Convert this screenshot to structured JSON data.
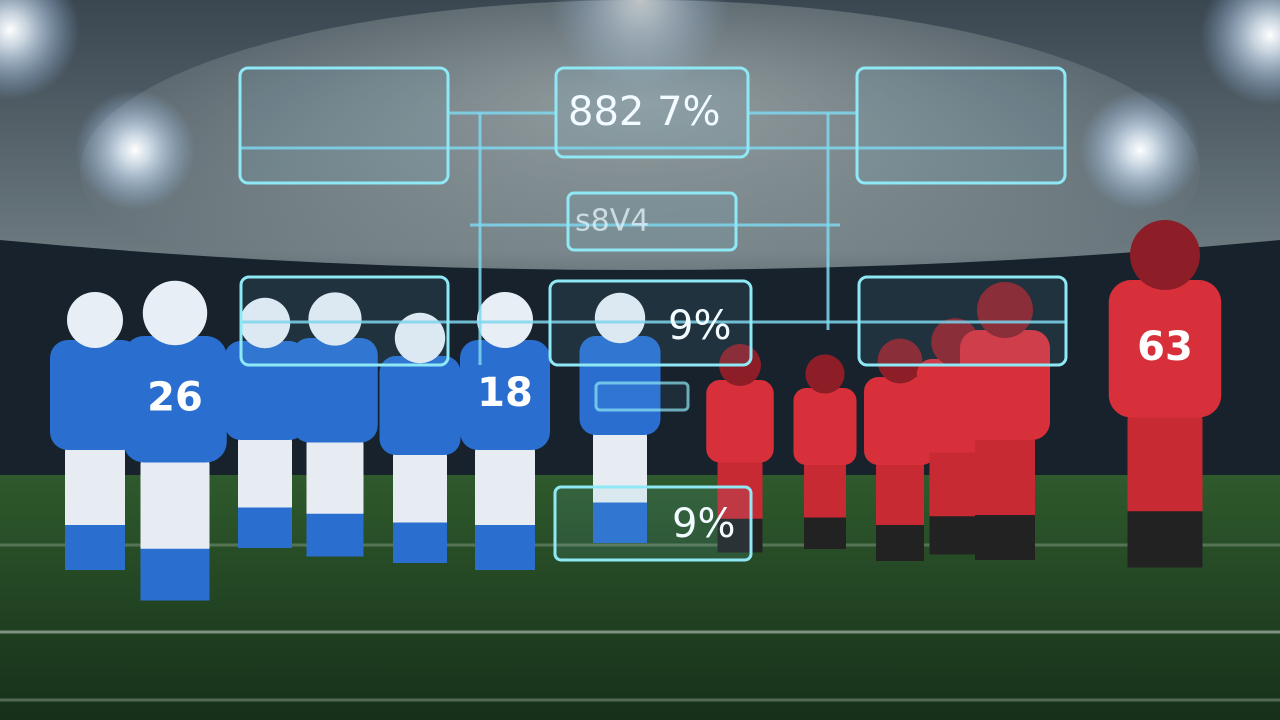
{
  "panels": [
    {
      "label": "882 7%"
    },
    {
      "label": "s8V4"
    },
    {
      "label": "9%"
    },
    {
      "label": "9%"
    }
  ],
  "jerseys": [
    "26",
    "18",
    "63"
  ]
}
